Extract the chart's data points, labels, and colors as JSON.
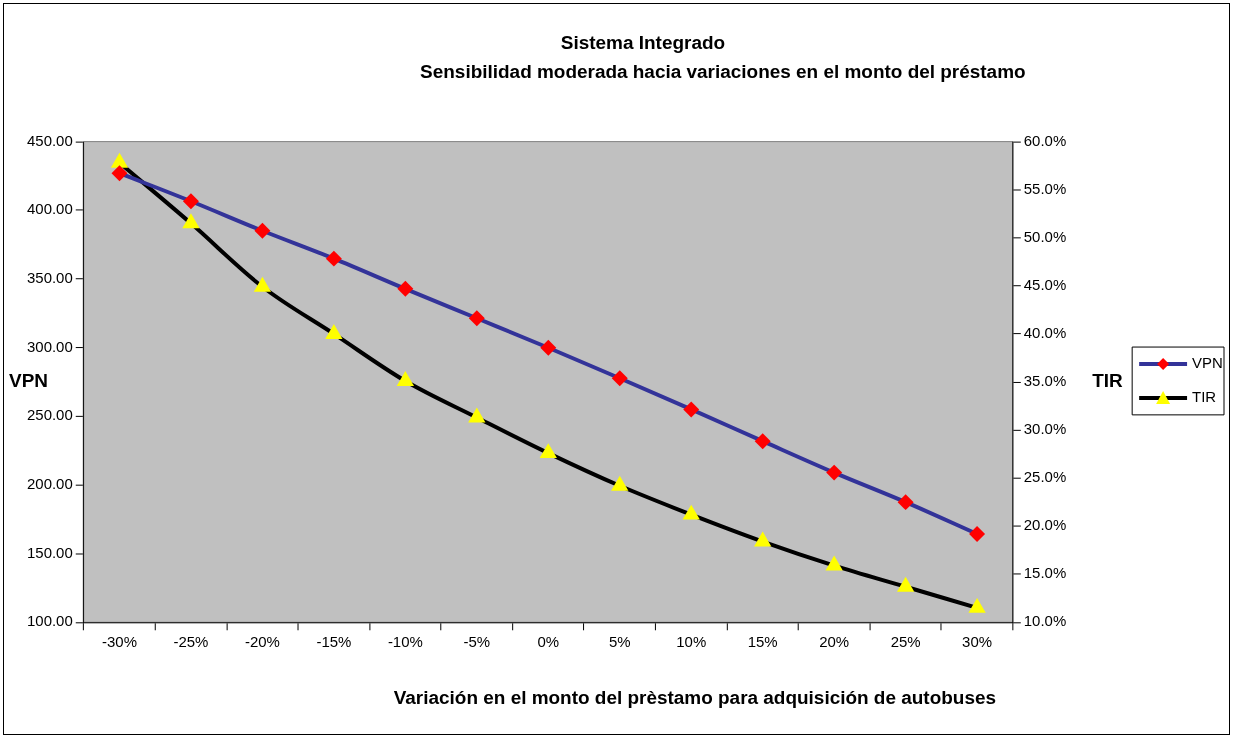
{
  "chart_data": {
    "type": "line",
    "title": "Sistema Integrado",
    "subtitle": "Sensibilidad moderada hacia variaciones en el monto del préstamo",
    "xlabel": "Variación en el monto del prèstamo para adquisición de autobuses",
    "ylabel": "VPN",
    "y2label": "TIR",
    "categories": [
      "-30%",
      "-25%",
      "-20%",
      "-15%",
      "-10%",
      "-5%",
      "0%",
      "5%",
      "10%",
      "15%",
      "20%",
      "25%",
      "30%"
    ],
    "series": [
      {
        "name": "VPN",
        "color": "#333399",
        "marker": "diamond",
        "values": [
          427,
          406.6,
          385.1,
          364.8,
          342.8,
          321.4,
          299.9,
          277.7,
          255,
          231.9,
          209,
          187.5,
          164.3
        ]
      },
      {
        "name": "TIR",
        "color": "#000000",
        "marker": "triangle",
        "axis": "y2",
        "values": [
          57.8,
          51.5,
          44.9,
          40.0,
          35.1,
          31.3,
          27.6,
          24.2,
          21.2,
          18.4,
          15.9,
          13.7,
          11.5
        ]
      }
    ],
    "ylim": [
      100,
      450
    ],
    "yticks": [
      {
        "value": 100,
        "label": "100.00"
      },
      {
        "value": 150,
        "label": "150.00"
      },
      {
        "value": 200,
        "label": "200.00"
      },
      {
        "value": 250,
        "label": "250.00"
      },
      {
        "value": 300,
        "label": "300.00"
      },
      {
        "value": 350,
        "label": "350.00"
      },
      {
        "value": 400,
        "label": "400.00"
      },
      {
        "value": 450,
        "label": "450.00"
      }
    ],
    "y2lim": [
      10,
      60
    ],
    "y2ticks": [
      {
        "value": 10,
        "label": "10.0%"
      },
      {
        "value": 15,
        "label": "15.0%"
      },
      {
        "value": 20,
        "label": "20.0%"
      },
      {
        "value": 25,
        "label": "25.0%"
      },
      {
        "value": 30,
        "label": "30.0%"
      },
      {
        "value": 35,
        "label": "35.0%"
      },
      {
        "value": 40,
        "label": "40.0%"
      },
      {
        "value": 45,
        "label": "45.0%"
      },
      {
        "value": 50,
        "label": "50.0%"
      },
      {
        "value": 55,
        "label": "55.0%"
      },
      {
        "value": 60,
        "label": "60.0%"
      }
    ],
    "grid": false,
    "legend": "right"
  }
}
